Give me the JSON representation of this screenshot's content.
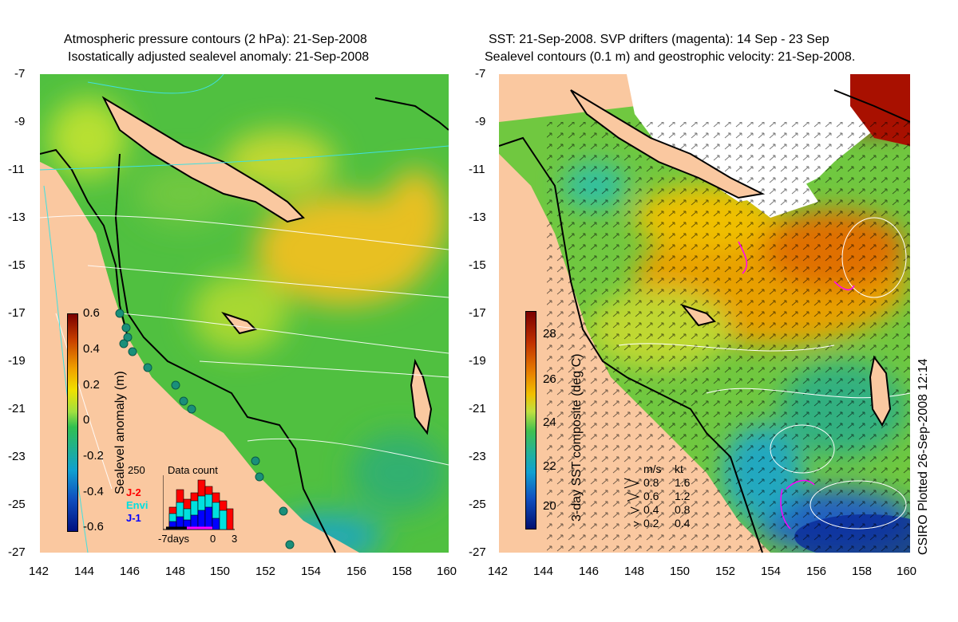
{
  "left_panel": {
    "title_line1": "Atmospheric pressure contours (2 hPa): 21-Sep-2008",
    "title_line2": "Isostatically adjusted sealevel anomaly: 21-Sep-2008",
    "colorbar": {
      "label": "Sealevel anomaly (m)",
      "ticks": [
        "0.6",
        "0.4",
        "0.2",
        "0",
        "-0.2",
        "-0.4",
        "-0.6"
      ],
      "colors": [
        "#7a0000",
        "#c84000",
        "#f0a000",
        "#f0e000",
        "#a0e040",
        "#30c050",
        "#20b090",
        "#10a0d0",
        "#1050c0",
        "#001080"
      ]
    },
    "data_count": {
      "title": "Data count",
      "ymax_label": "250",
      "series": [
        "J-2",
        "Envi",
        "J-1"
      ],
      "series_colors": [
        "#ff0000",
        "#00e0e0",
        "#0000ff"
      ],
      "xlabels": [
        "-7days",
        "0",
        "3"
      ]
    }
  },
  "right_panel": {
    "title_line1": "SST: 21-Sep-2008. SVP drifters (magenta): 14 Sep - 23 Sep",
    "title_line2": "Sealevel contours (0.1 m) and geostrophic velocity: 21-Sep-2008.",
    "colorbar": {
      "label": "3-day SST composite (deg C)",
      "ticks": [
        "28",
        "26",
        "24",
        "22",
        "20"
      ],
      "colors": [
        "#7a0000",
        "#c03000",
        "#e88000",
        "#f0c000",
        "#c0e040",
        "#40c050",
        "#20b0a0",
        "#10a0d0",
        "#1050c0",
        "#001070"
      ]
    },
    "velocity_legend": {
      "header_ms": "m/s",
      "header_kt": "kt",
      "rows": [
        {
          "ms": "0.8",
          "kt": "1.6"
        },
        {
          "ms": "0.6",
          "kt": "1.2"
        },
        {
          "ms": "0.4",
          "kt": "0.8"
        },
        {
          "ms": "0.2",
          "kt": "0.4"
        }
      ]
    },
    "credit": "CSIRO Plotted 26-Sep-2008 12:14"
  },
  "axes": {
    "lat_ticks": [
      "-7",
      "-9",
      "-11",
      "-13",
      "-15",
      "-17",
      "-19",
      "-21",
      "-23",
      "-25",
      "-27"
    ],
    "lon_ticks": [
      "142",
      "144",
      "146",
      "148",
      "150",
      "152",
      "154",
      "156",
      "158",
      "160"
    ]
  },
  "colors": {
    "land": "#fac8a0",
    "contour": "#ffffff",
    "coast": "#000000",
    "drifters": "#ff00ff",
    "tide_gauge": "#1a8f7a"
  }
}
